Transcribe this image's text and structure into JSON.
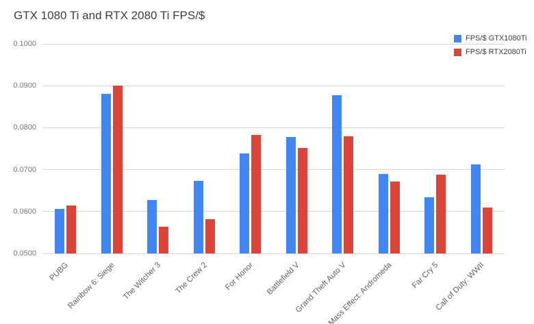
{
  "chart_data": {
    "type": "bar",
    "title": "GTX 1080 Ti and RTX 2080 Ti FPS/$",
    "categories": [
      "PUBG",
      "Rainbow 6: Siege",
      "The Witcher 3",
      "The Crew 2",
      "For Honor",
      "Battlefield V",
      "Grand Theft Auto V",
      "Mass Effect: Andromeda",
      "Far Cry 5",
      "Call of Duty: WWII"
    ],
    "series": [
      {
        "name": "FPS/$ GTX1080Ti",
        "color": "#4285f4",
        "values": [
          0.0607,
          0.088,
          0.0628,
          0.0674,
          0.0739,
          0.0777,
          0.0877,
          0.069,
          0.0634,
          0.0713
        ]
      },
      {
        "name": "FPS/$ RTX2080Ti",
        "color": "#db4437",
        "values": [
          0.0615,
          0.09,
          0.0563,
          0.0582,
          0.0783,
          0.0752,
          0.078,
          0.0672,
          0.0688,
          0.0609
        ]
      }
    ],
    "xlabel": "",
    "ylabel": "",
    "ylim": [
      0.05,
      0.1
    ],
    "grid": true,
    "legend_position": "top-right",
    "y_ticks": [
      {
        "label": "0.1000",
        "value": 0.1
      },
      {
        "label": "0.0900",
        "value": 0.09
      },
      {
        "label": "0.0800",
        "value": 0.08
      },
      {
        "label": "0.0700",
        "value": 0.07
      },
      {
        "label": "0.0600",
        "value": 0.06
      },
      {
        "label": "0.0500",
        "value": 0.05
      }
    ]
  },
  "colors": {
    "background": "#ffffff",
    "gridline": "#d6d6d6",
    "title_text": "#3c3c3c",
    "axis_tick_text": "#757575",
    "category_text": "#5f5f5f",
    "series_blue": "#4285f4",
    "series_red": "#db4437"
  }
}
